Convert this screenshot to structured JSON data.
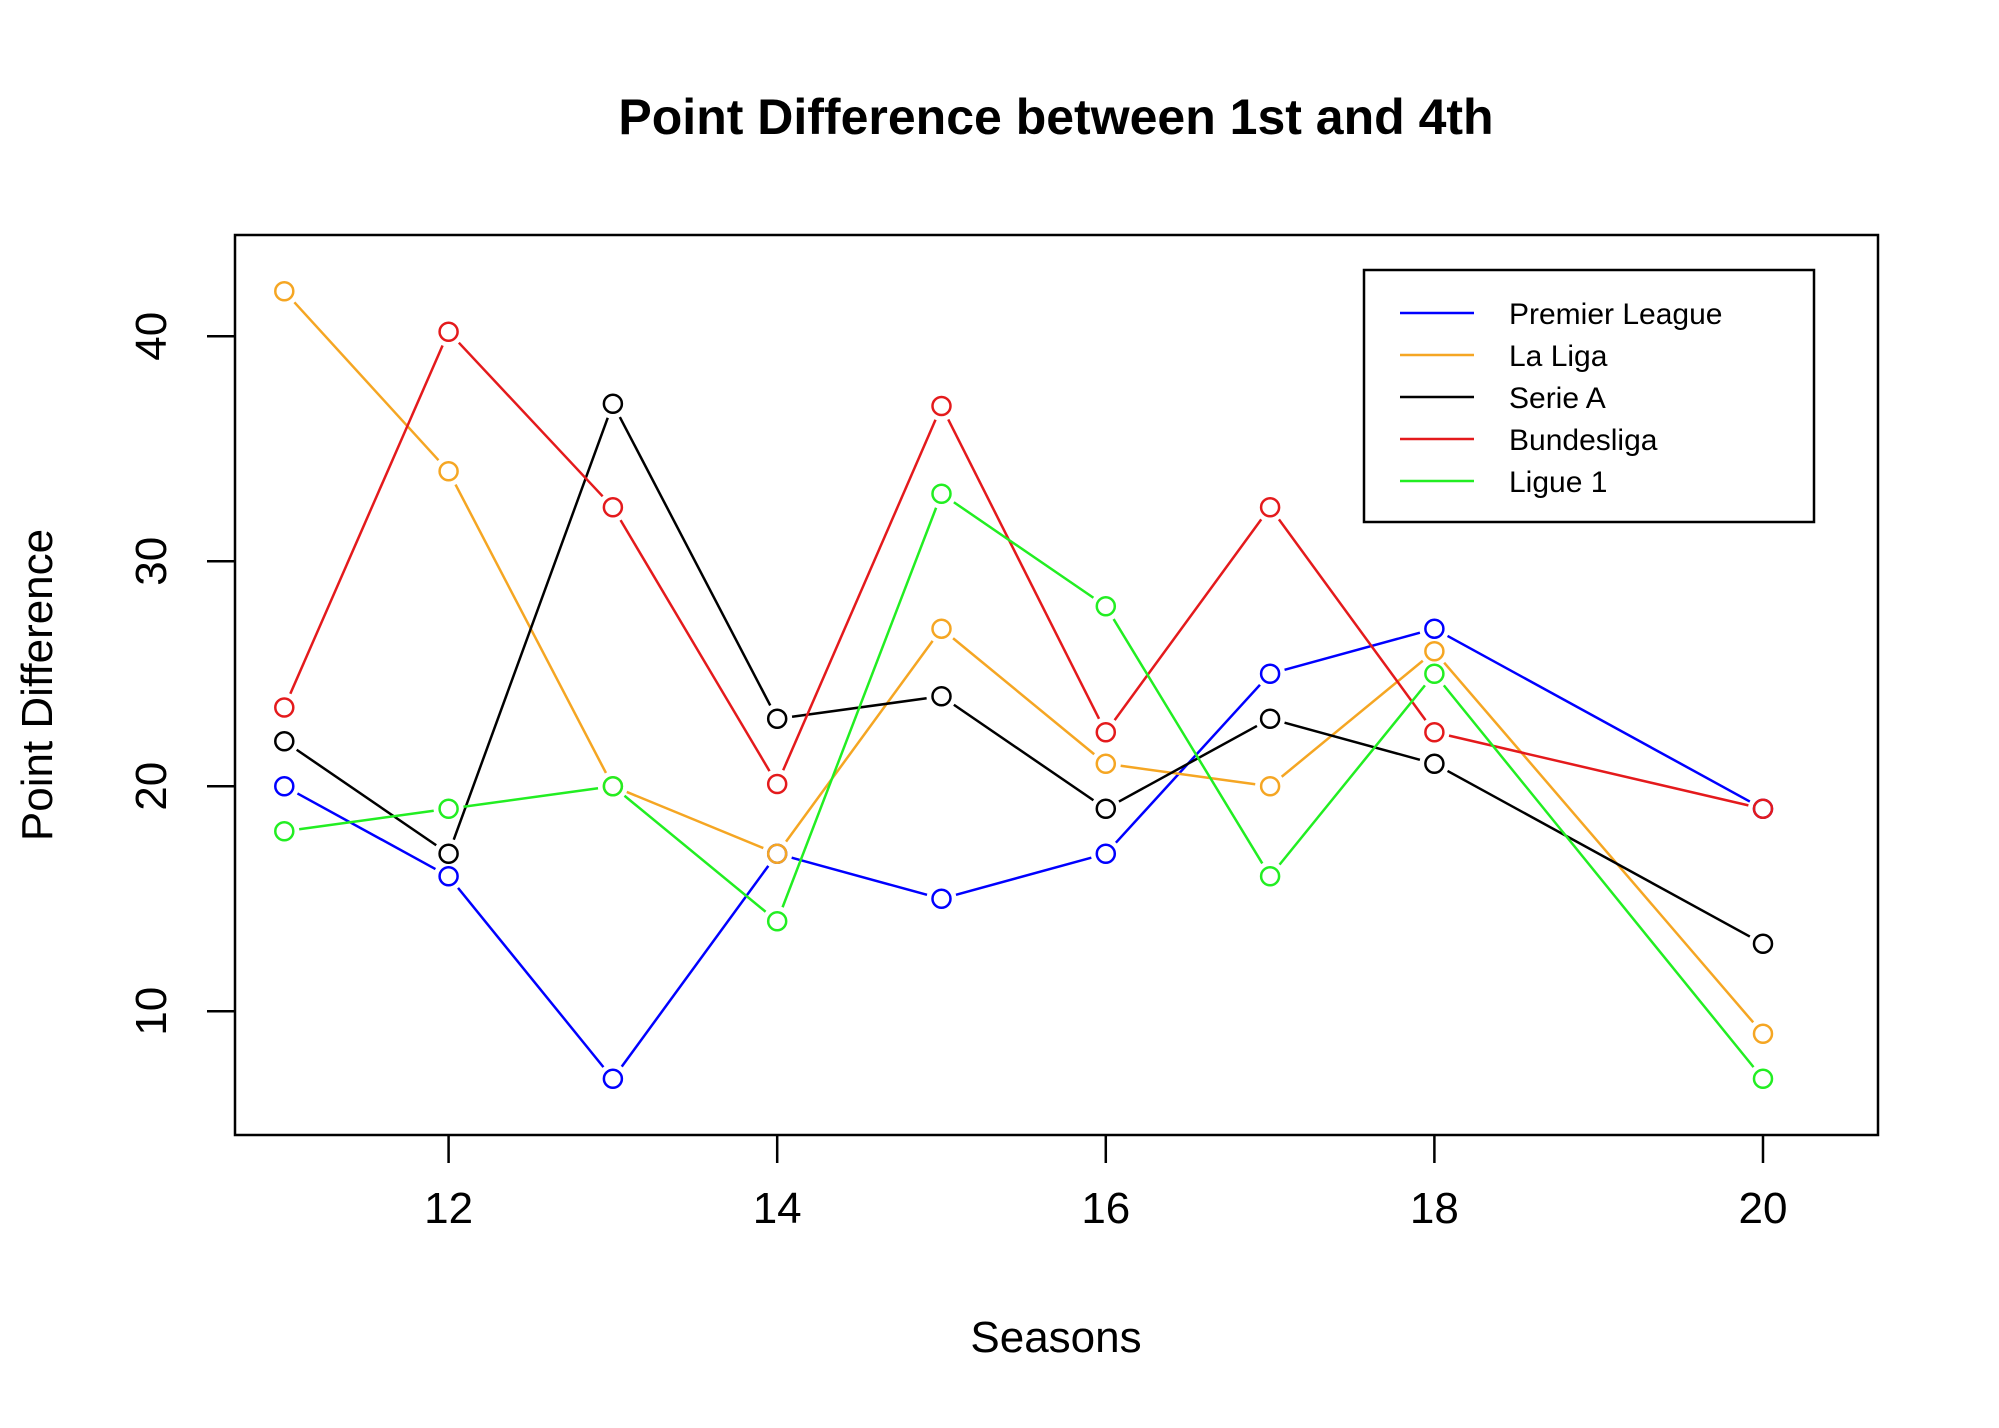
{
  "chart_data": {
    "type": "line",
    "title": "Point Difference between 1st and 4th",
    "xlabel": "Seasons",
    "ylabel": "Point Difference",
    "x": [
      11,
      12,
      13,
      14,
      15,
      16,
      17,
      18,
      20
    ],
    "xlim": [
      10.7,
      20.7
    ],
    "ylim": [
      4.5,
      44.5
    ],
    "xticks": [
      12,
      14,
      16,
      18,
      20
    ],
    "xtick_labels": [
      "12",
      "14",
      "16",
      "18",
      "20"
    ],
    "yticks": [
      10,
      20,
      30,
      40
    ],
    "ytick_labels": [
      "10",
      "20",
      "30",
      "40"
    ],
    "grid": false,
    "legend_position": "top-right",
    "series": [
      {
        "name": "Premier League",
        "color": "#0000ff",
        "values": [
          20,
          16,
          7,
          17,
          15,
          17,
          25,
          27,
          19
        ]
      },
      {
        "name": "La Liga",
        "color": "#f5a623",
        "values": [
          42,
          34,
          20,
          17,
          27,
          21,
          20,
          26,
          9
        ]
      },
      {
        "name": "Serie A",
        "color": "#000000",
        "values": [
          22,
          17,
          37,
          23,
          24,
          19,
          23,
          21,
          13
        ]
      },
      {
        "name": "Bundesliga",
        "color": "#e41a1c",
        "values": [
          23.5,
          40.2,
          32.4,
          20.1,
          36.9,
          22.4,
          32.4,
          22.4,
          19
        ]
      },
      {
        "name": "Ligue 1",
        "color": "#22ee22",
        "values": [
          18,
          19,
          20,
          14,
          33,
          28,
          16,
          25,
          7
        ]
      }
    ]
  }
}
